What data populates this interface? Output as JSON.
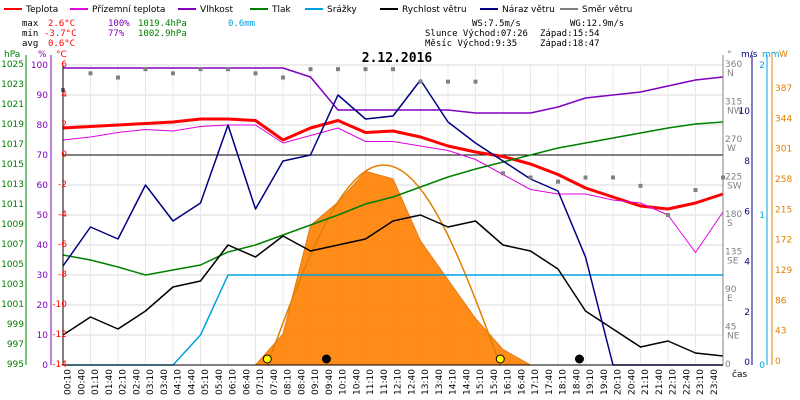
{
  "title": "2.12.2016",
  "legend": [
    {
      "label": "Teplota",
      "color": "#ff0000"
    },
    {
      "label": "Přízemní teplota",
      "color": "#e000e0"
    },
    {
      "label": "Vlhkost",
      "color": "#8000c0"
    },
    {
      "label": "Tlak",
      "color": "#008000"
    },
    {
      "label": "Srážky",
      "color": "#00a0e0"
    },
    {
      "label": "Rychlost větru",
      "color": "#000000"
    },
    {
      "label": "Náraz větru",
      "color": "#000080"
    },
    {
      "label": "Směr větru",
      "color": "#808080"
    }
  ],
  "stats": {
    "max_label": "max",
    "max_temp": "2.6°C",
    "max_hum": "100%",
    "max_press": "1019.4hPa",
    "rain": "0.6mm",
    "min_label": "min",
    "min_temp": "-3.7°C",
    "min_hum": "77%",
    "min_press": "1002.9hPa",
    "avg_label": "avg",
    "avg_temp": "0.6°C",
    "ws": "WS:7.5m/s",
    "wg": "WG:12.9m/s",
    "sun_rise": "Slunce Východ:07:26",
    "sun_set": "Západ:15:54",
    "moon_rise": "Měsíc  Východ:9:35",
    "moon_set": "Západ:18:47"
  },
  "axes": {
    "hpa_unit": "hPa",
    "pct_unit": "%",
    "c_unit": "°C",
    "deg_unit": "°",
    "ms_unit": "m/s",
    "mm_unit": "mm",
    "w_unit": "W",
    "x_unit": "čas",
    "hpa_ticks": [
      "1025",
      "1023",
      "1021",
      "1019",
      "1017",
      "1015",
      "1013",
      "1011",
      "1009",
      "1007",
      "1005",
      "1003",
      "1001",
      "999",
      "997",
      "995"
    ],
    "pct_ticks": [
      "100",
      "90",
      "80",
      "70",
      "60",
      "50",
      "40",
      "30",
      "20",
      "10",
      "0"
    ],
    "c_ticks": [
      "6",
      "4",
      "2",
      "0",
      "-2",
      "-4",
      "-6",
      "-8",
      "-10",
      "-12",
      "-14"
    ],
    "deg_ticks": [
      {
        "v": "360",
        "d": "N"
      },
      {
        "v": "315",
        "d": "NW"
      },
      {
        "v": "270",
        "d": "W"
      },
      {
        "v": "225",
        "d": "SW"
      },
      {
        "v": "180",
        "d": "S"
      },
      {
        "v": "135",
        "d": "SE"
      },
      {
        "v": "90",
        "d": "E"
      },
      {
        "v": "45",
        "d": "NE"
      },
      {
        "v": "0",
        "d": ""
      }
    ],
    "ms_ticks": [
      "10",
      "8",
      "6",
      "4",
      "2",
      "0"
    ],
    "mm_ticks": [
      "2",
      "1",
      "0"
    ],
    "w_ticks": [
      "387",
      "344",
      "301",
      "258",
      "215",
      "172",
      "129",
      "86",
      "43",
      "0"
    ],
    "time_ticks": [
      "00:10",
      "00:40",
      "01:10",
      "01:40",
      "02:10",
      "02:40",
      "03:10",
      "03:40",
      "04:10",
      "04:40",
      "05:10",
      "05:40",
      "06:10",
      "06:40",
      "07:10",
      "07:40",
      "08:10",
      "08:40",
      "09:10",
      "09:40",
      "10:10",
      "10:40",
      "11:10",
      "11:40",
      "12:10",
      "12:40",
      "13:10",
      "13:40",
      "14:10",
      "14:40",
      "15:10",
      "15:40",
      "16:10",
      "16:40",
      "17:10",
      "17:40",
      "18:10",
      "18:40",
      "19:10",
      "19:40",
      "20:10",
      "20:40",
      "21:10",
      "21:40",
      "22:10",
      "22:40",
      "23:10",
      "23:40"
    ]
  },
  "chart_data": {
    "type": "line",
    "title": "2.12.2016",
    "xlabel": "čas",
    "x_hours": [
      0,
      1,
      2,
      3,
      4,
      5,
      6,
      7,
      8,
      9,
      10,
      11,
      12,
      13,
      14,
      15,
      16,
      17,
      18,
      19,
      20,
      21,
      22,
      23,
      24
    ],
    "series": [
      {
        "name": "Teplota",
        "unit": "°C",
        "values": [
          1.8,
          1.9,
          2.0,
          2.1,
          2.2,
          2.4,
          2.4,
          2.3,
          1.0,
          1.8,
          2.3,
          1.5,
          1.6,
          1.2,
          0.6,
          0.2,
          -0.1,
          -0.6,
          -1.3,
          -2.2,
          -2.8,
          -3.4,
          -3.6,
          -3.2,
          -2.6
        ]
      },
      {
        "name": "Přízemní teplota",
        "unit": "°C",
        "values": [
          1.0,
          1.2,
          1.5,
          1.7,
          1.6,
          1.9,
          2.0,
          2.0,
          0.8,
          1.3,
          1.8,
          0.9,
          0.9,
          0.6,
          0.3,
          -0.3,
          -1.3,
          -2.3,
          -2.6,
          -2.6,
          -3.0,
          -3.2,
          -4.0,
          -6.5,
          -3.8
        ]
      },
      {
        "name": "Vlhkost",
        "unit": "%",
        "values": [
          99,
          99,
          99,
          99,
          99,
          99,
          99,
          99,
          99,
          96,
          85,
          85,
          85,
          85,
          85,
          84,
          84,
          84,
          86,
          89,
          90,
          91,
          93,
          95,
          96
        ]
      },
      {
        "name": "Tlak",
        "unit": "hPa",
        "values": [
          1006.0,
          1005.5,
          1004.8,
          1004.0,
          1004.5,
          1005.0,
          1006.3,
          1007.0,
          1008.0,
          1009.0,
          1010.0,
          1011.1,
          1011.8,
          1012.8,
          1013.8,
          1014.6,
          1015.3,
          1016.0,
          1016.7,
          1017.2,
          1017.7,
          1018.2,
          1018.7,
          1019.1,
          1019.3
        ]
      },
      {
        "name": "Srážky",
        "unit": "mm",
        "values": [
          0,
          0,
          0,
          0,
          0,
          0.2,
          0.6,
          0.6,
          0.6,
          0.6,
          0.6,
          0.6,
          0.6,
          0.6,
          0.6,
          0.6,
          0.6,
          0.6,
          0.6,
          0.6,
          0.6,
          0.6,
          0.6,
          0.6,
          0.6
        ]
      },
      {
        "name": "Rychlost větru",
        "unit": "m/s",
        "values": [
          1.0,
          1.6,
          1.2,
          1.8,
          2.6,
          2.8,
          4.0,
          3.6,
          4.3,
          3.8,
          4.0,
          4.2,
          4.8,
          5.0,
          4.6,
          4.8,
          4.0,
          3.8,
          3.2,
          1.8,
          1.2,
          0.6,
          0.8,
          0.4,
          0.3
        ]
      },
      {
        "name": "Náraz větru",
        "unit": "m/s",
        "values": [
          3.3,
          4.6,
          4.2,
          6.0,
          4.8,
          5.4,
          8.0,
          5.2,
          6.8,
          7.0,
          9.0,
          8.2,
          8.3,
          9.5,
          8.1,
          7.4,
          6.8,
          6.2,
          5.8,
          3.6,
          0.0,
          0.0,
          0.0,
          0.0,
          0.0
        ]
      },
      {
        "name": "Směr větru",
        "unit": "°",
        "values": [
          330,
          350,
          345,
          355,
          350,
          355,
          355,
          350,
          345,
          355,
          355,
          355,
          355,
          340,
          340,
          340,
          230,
          225,
          220,
          225,
          225,
          215,
          180,
          210,
          225
        ]
      },
      {
        "name": "",
        "unit": "W",
        "values": [
          0,
          0,
          0,
          0,
          0,
          0,
          0,
          0,
          40,
          180,
          210,
          250,
          240,
          160,
          110,
          60,
          20,
          0,
          0,
          0,
          0,
          0,
          0,
          0,
          0
        ]
      }
    ],
    "ylim_temp": [
      -14,
      6
    ],
    "ylim_hum": [
      0,
      100
    ],
    "ylim_press": [
      995,
      1025
    ],
    "ylim_wind": [
      0,
      10
    ],
    "ylim_rain": [
      0,
      2
    ],
    "ylim_solar": [
      0,
      387
    ],
    "sun_elevation_peak_w": 258,
    "events": [
      {
        "kind": "sunrise",
        "hour": 7.43
      },
      {
        "kind": "moonrise",
        "hour": 9.58
      },
      {
        "kind": "sunset",
        "hour": 15.9
      },
      {
        "kind": "moonset",
        "hour": 18.78
      }
    ],
    "grid": true
  }
}
